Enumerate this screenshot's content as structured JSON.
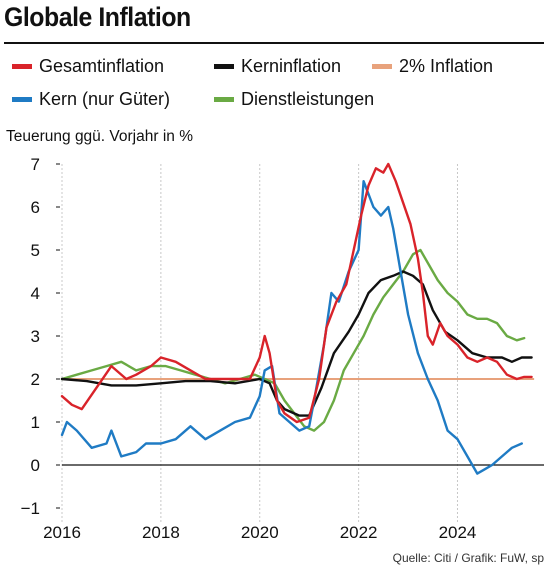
{
  "title": "Globale Inflation",
  "source": "Quelle: Citi / Grafik: FuW, sp",
  "legend": [
    {
      "label": "Gesamtinflation",
      "color": "#d9232a"
    },
    {
      "label": "Kerninflation",
      "color": "#111111"
    },
    {
      "label": "2% Inflation",
      "color": "#e8a27c"
    },
    {
      "label": "Kern (nur Güter)",
      "color": "#1f7bc4"
    },
    {
      "label": "Dienstleistungen",
      "color": "#6aaa44"
    }
  ],
  "chart_data": {
    "type": "line",
    "ylabel": "Teuerung ggü. Vorjahr in %",
    "xlabel": "",
    "ylim": [
      -1,
      7
    ],
    "xlim": [
      2016,
      2025.75
    ],
    "yticks": [
      "7",
      "6",
      "5",
      "4",
      "3",
      "2",
      "1",
      "0",
      "−1"
    ],
    "xticks": [
      "2016",
      "2018",
      "2020",
      "2022",
      "2024"
    ],
    "grid": "vertical",
    "reference_line": {
      "name": "2% Inflation",
      "y": 2,
      "color": "#e8a27c"
    },
    "series": [
      {
        "name": "Gesamtinflation",
        "color": "#d9232a",
        "x": [
          2016.0,
          2016.2,
          2016.4,
          2016.7,
          2017.0,
          2017.3,
          2017.5,
          2017.8,
          2018.0,
          2018.3,
          2018.6,
          2018.9,
          2019.2,
          2019.5,
          2019.8,
          2020.0,
          2020.1,
          2020.2,
          2020.35,
          2020.5,
          2020.75,
          2021.0,
          2021.2,
          2021.35,
          2021.55,
          2021.75,
          2021.9,
          2022.05,
          2022.2,
          2022.35,
          2022.5,
          2022.6,
          2022.75,
          2022.9,
          2023.05,
          2023.2,
          2023.3,
          2023.4,
          2023.5,
          2023.65,
          2023.8,
          2024.0,
          2024.2,
          2024.4,
          2024.6,
          2024.8,
          2025.0,
          2025.2,
          2025.35,
          2025.5
        ],
        "values": [
          1.6,
          1.4,
          1.3,
          1.8,
          2.3,
          2.0,
          2.1,
          2.3,
          2.5,
          2.4,
          2.2,
          2.0,
          2.0,
          2.0,
          2.0,
          2.5,
          3.0,
          2.6,
          1.5,
          1.2,
          1.0,
          1.1,
          2.0,
          3.2,
          3.8,
          4.2,
          5.0,
          5.8,
          6.5,
          6.9,
          6.8,
          7.0,
          6.6,
          6.1,
          5.6,
          4.8,
          4.0,
          3.0,
          2.8,
          3.3,
          3.0,
          2.8,
          2.5,
          2.4,
          2.5,
          2.4,
          2.1,
          2.0,
          2.05,
          2.05
        ]
      },
      {
        "name": "Kerninflation",
        "color": "#111111",
        "x": [
          2016.0,
          2016.5,
          2017.0,
          2017.5,
          2018.0,
          2018.5,
          2019.0,
          2019.5,
          2020.0,
          2020.2,
          2020.35,
          2020.5,
          2020.8,
          2021.0,
          2021.25,
          2021.5,
          2021.8,
          2022.0,
          2022.2,
          2022.45,
          2022.7,
          2022.9,
          2023.1,
          2023.3,
          2023.5,
          2023.75,
          2024.0,
          2024.3,
          2024.6,
          2024.9,
          2025.1,
          2025.3,
          2025.5
        ],
        "values": [
          2.0,
          1.95,
          1.85,
          1.85,
          1.9,
          1.95,
          1.95,
          1.9,
          2.0,
          1.9,
          1.5,
          1.3,
          1.15,
          1.15,
          1.8,
          2.6,
          3.1,
          3.5,
          4.0,
          4.3,
          4.4,
          4.5,
          4.4,
          4.2,
          3.6,
          3.1,
          2.9,
          2.6,
          2.5,
          2.5,
          2.4,
          2.5,
          2.5
        ]
      },
      {
        "name": "Kern (nur Güter)",
        "color": "#1f7bc4",
        "x": [
          2016.0,
          2016.1,
          2016.3,
          2016.6,
          2016.9,
          2017.0,
          2017.2,
          2017.5,
          2017.7,
          2018.0,
          2018.3,
          2018.6,
          2018.9,
          2019.2,
          2019.5,
          2019.8,
          2020.0,
          2020.1,
          2020.25,
          2020.4,
          2020.6,
          2020.8,
          2021.0,
          2021.1,
          2021.3,
          2021.45,
          2021.6,
          2021.8,
          2022.0,
          2022.1,
          2022.2,
          2022.3,
          2022.45,
          2022.6,
          2022.7,
          2022.85,
          2023.0,
          2023.2,
          2023.4,
          2023.6,
          2023.8,
          2024.0,
          2024.2,
          2024.4,
          2024.55,
          2024.7,
          2024.9,
          2025.1,
          2025.3
        ],
        "values": [
          0.7,
          1.0,
          0.8,
          0.4,
          0.5,
          0.8,
          0.2,
          0.3,
          0.5,
          0.5,
          0.6,
          0.9,
          0.6,
          0.8,
          1.0,
          1.1,
          1.6,
          2.2,
          2.3,
          1.2,
          1.0,
          0.8,
          0.9,
          1.5,
          2.8,
          4.0,
          3.8,
          4.5,
          5.0,
          6.6,
          6.3,
          6.0,
          5.8,
          6.0,
          5.5,
          4.5,
          3.5,
          2.6,
          2.0,
          1.5,
          0.8,
          0.6,
          0.2,
          -0.2,
          -0.1,
          0.0,
          0.2,
          0.4,
          0.5
        ]
      },
      {
        "name": "Dienstleistungen",
        "color": "#6aaa44",
        "x": [
          2016.0,
          2016.3,
          2016.6,
          2016.9,
          2017.2,
          2017.5,
          2017.8,
          2018.1,
          2018.4,
          2018.7,
          2019.0,
          2019.3,
          2019.6,
          2019.9,
          2020.1,
          2020.3,
          2020.5,
          2020.7,
          2020.9,
          2021.1,
          2021.3,
          2021.5,
          2021.7,
          2021.9,
          2022.1,
          2022.3,
          2022.5,
          2022.7,
          2022.9,
          2023.1,
          2023.25,
          2023.4,
          2023.6,
          2023.8,
          2024.0,
          2024.2,
          2024.4,
          2024.6,
          2024.8,
          2025.0,
          2025.2,
          2025.35
        ],
        "values": [
          2.0,
          2.1,
          2.2,
          2.3,
          2.4,
          2.2,
          2.3,
          2.3,
          2.2,
          2.1,
          2.0,
          1.9,
          2.0,
          2.1,
          2.0,
          1.9,
          1.5,
          1.2,
          0.9,
          0.8,
          1.0,
          1.5,
          2.2,
          2.6,
          3.0,
          3.5,
          3.9,
          4.2,
          4.5,
          4.9,
          5.0,
          4.7,
          4.3,
          4.0,
          3.8,
          3.5,
          3.4,
          3.4,
          3.3,
          3.0,
          2.9,
          2.95
        ]
      }
    ]
  }
}
